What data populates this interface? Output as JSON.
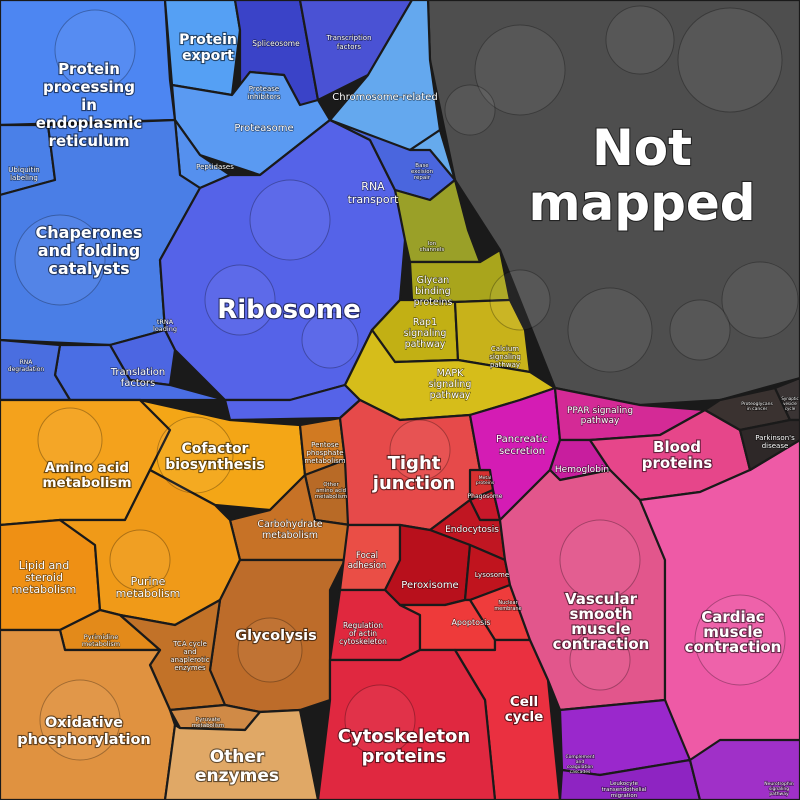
{
  "regions": [
    {
      "id": "not-mapped",
      "label": "Not mapped",
      "color": "#4e4e4e"
    },
    {
      "id": "protein-processing",
      "label": "Protein processing in endoplasmic reticulum",
      "color": "#4d86f2"
    },
    {
      "id": "protein-export",
      "label": "Protein export",
      "color": "#55a0f4"
    },
    {
      "id": "spliceosome",
      "label": "Spliceosome",
      "color": "#3a43c8"
    },
    {
      "id": "transcription-factors",
      "label": "Transcription factors",
      "color": "#4a52d4"
    },
    {
      "id": "chromosome-related",
      "label": "Chromosome-related",
      "color": "#64a8ee"
    },
    {
      "id": "protease-inhibitors",
      "label": "Protease inhibitors",
      "color": "#5aa6f2"
    },
    {
      "id": "proteasome",
      "label": "Proteasome",
      "color": "#5a9af2"
    },
    {
      "id": "peptidases",
      "label": "Peptidases",
      "color": "#5590ee"
    },
    {
      "id": "ubiquitin-labeling",
      "label": "Ubiquitin labeling",
      "color": "#4a80e8"
    },
    {
      "id": "chaperones",
      "label": "Chaperones and folding catalysts",
      "color": "#4a7ee6"
    },
    {
      "id": "ribosome",
      "label": "Ribosome",
      "color": "#5563e8"
    },
    {
      "id": "rna-transport",
      "label": "RNA transport",
      "color": "#4a66de"
    },
    {
      "id": "base-excision-repair",
      "label": "Base excision repair",
      "color": "#66aaec"
    },
    {
      "id": "rna-degradation",
      "label": "RNA degradation",
      "color": "#4a6ee0"
    },
    {
      "id": "trna-loading",
      "label": "tRNA loading",
      "color": "#4c66e2"
    },
    {
      "id": "translation-factors",
      "label": "Translation factors",
      "color": "#4a6ee4"
    },
    {
      "id": "ion-channels",
      "label": "Ion channels",
      "color": "#9aa028"
    },
    {
      "id": "glycan-binding",
      "label": "Glycan binding proteins",
      "color": "#a9a51c"
    },
    {
      "id": "rap1",
      "label": "Rap1 signaling pathway",
      "color": "#c2b014"
    },
    {
      "id": "calcium",
      "label": "Calcium signaling pathway",
      "color": "#c8b21a"
    },
    {
      "id": "mapk",
      "label": "MAPK signaling pathway",
      "color": "#d6bd1a"
    },
    {
      "id": "amino-acid",
      "label": "Amino acid metabolism",
      "color": "#f4a21c"
    },
    {
      "id": "cofactor",
      "label": "Cofactor biosynthesis",
      "color": "#f4a616"
    },
    {
      "id": "pentose",
      "label": "Pentose phosphate metabolism",
      "color": "#d17a22"
    },
    {
      "id": "other-amino",
      "label": "Other amino acid metabolism",
      "color": "#b86a26"
    },
    {
      "id": "carbohydrate",
      "label": "Carbohydrate metabolism",
      "color": "#c77226"
    },
    {
      "id": "lipid-steroid",
      "label": "Lipid and steroid metabolism",
      "color": "#ef9014"
    },
    {
      "id": "purine",
      "label": "Purine metabolism",
      "color": "#f09a18"
    },
    {
      "id": "pyrimidine",
      "label": "Pyrimidine metabolism",
      "color": "#e38a1a"
    },
    {
      "id": "glycolysis",
      "label": "Glycolysis",
      "color": "#bd6c2a"
    },
    {
      "id": "tca",
      "label": "TCA cycle and anaplerotic enzymes",
      "color": "#c27228"
    },
    {
      "id": "oxphos",
      "label": "Oxidative phosphorylation",
      "color": "#e09240"
    },
    {
      "id": "pyruvate",
      "label": "Pyruvate metabolism",
      "color": "#d08a46"
    },
    {
      "id": "other-enzymes",
      "label": "Other enzymes",
      "color": "#e0a866"
    },
    {
      "id": "tight-junction",
      "label": "Tight junction",
      "color": "#e64a4a"
    },
    {
      "id": "metal-proteins",
      "label": "Metal proteins",
      "color": "#d63030"
    },
    {
      "id": "phagosome",
      "label": "Phagosome",
      "color": "#c8182a"
    },
    {
      "id": "endocytosis",
      "label": "Endocytosis",
      "color": "#c01622"
    },
    {
      "id": "focal-adhesion",
      "label": "Focal adhesion",
      "color": "#ea4e46"
    },
    {
      "id": "peroxisome",
      "label": "Peroxisome",
      "color": "#b8101c"
    },
    {
      "id": "lysosome",
      "label": "Lysosome",
      "color": "#c0141e"
    },
    {
      "id": "nuclear-membrane",
      "label": "Nuclear membrane",
      "color": "#ef3c3c"
    },
    {
      "id": "regulation-actin",
      "label": "Regulation of actin cytoskeleton",
      "color": "#e0283e"
    },
    {
      "id": "apoptosis",
      "label": "Apoptosis",
      "color": "#ee3a3a"
    },
    {
      "id": "cell-cycle",
      "label": "Cell cycle",
      "color": "#ea3040"
    },
    {
      "id": "cytoskeleton",
      "label": "Cytoskeleton proteins",
      "color": "#e02840"
    },
    {
      "id": "pancreatic",
      "label": "Pancreatic secretion",
      "color": "#d41cb4"
    },
    {
      "id": "ppar",
      "label": "PPAR signaling pathway",
      "color": "#d42a96"
    },
    {
      "id": "hemoglobin",
      "label": "Hemoglobin",
      "color": "#c81e9e"
    },
    {
      "id": "blood-proteins",
      "label": "Blood proteins",
      "color": "#e6468a"
    },
    {
      "id": "vascular",
      "label": "Vascular smooth muscle contraction",
      "color": "#e2568c"
    },
    {
      "id": "cardiac",
      "label": "Cardiac muscle contraction",
      "color": "#ee5aa6"
    },
    {
      "id": "complement",
      "label": "Complement and coagulation cascades",
      "color": "#9a28cc"
    },
    {
      "id": "leukocyte",
      "label": "Leukocyte transendothelial migration",
      "color": "#8e24c2"
    },
    {
      "id": "neurotrophin",
      "label": "Neurotrophin signaling pathway",
      "color": "#a030c8"
    },
    {
      "id": "proteoglycans",
      "label": "Proteoglycans in cancer",
      "color": "#3a3230"
    },
    {
      "id": "parkinsons",
      "label": "Parkinson's disease",
      "color": "#2e2828"
    },
    {
      "id": "dark-small",
      "label": "Synaptic vesicle cycle",
      "color": "#3a3434"
    }
  ]
}
